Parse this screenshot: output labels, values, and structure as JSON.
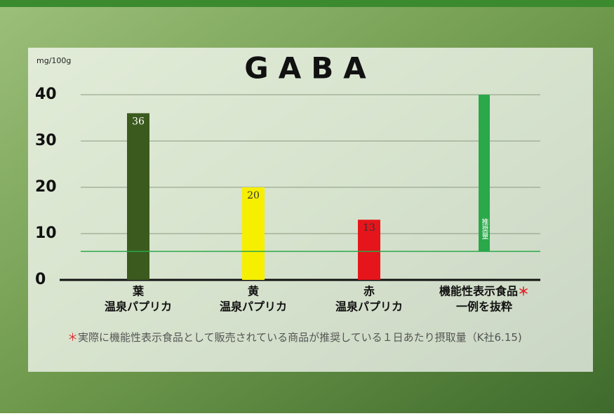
{
  "chart_data": {
    "type": "bar",
    "title": "GABA",
    "y_unit": "mg/100g",
    "categories": [
      [
        "葉",
        "温泉パプリカ"
      ],
      [
        "黄",
        "温泉パプリカ"
      ],
      [
        "赤",
        "温泉パプリカ"
      ],
      [
        "機能性表示食品",
        "一例を抜粋"
      ]
    ],
    "values": [
      36,
      20,
      13,
      null
    ],
    "colors": [
      "#3b5a1e",
      "#f6ef00",
      "#e5151b",
      null
    ],
    "reference": {
      "value": 6.15,
      "label": "推奨量",
      "color": "#2aa84a"
    },
    "footnote_mark": "＊",
    "footnote": "実際に機能性表示食品として販売されている商品が推奨している１日あたり摂取量（K社6.15)",
    "ylim": [
      0,
      40
    ],
    "yticks": [
      0,
      10,
      20,
      30,
      40
    ],
    "grid": true
  }
}
